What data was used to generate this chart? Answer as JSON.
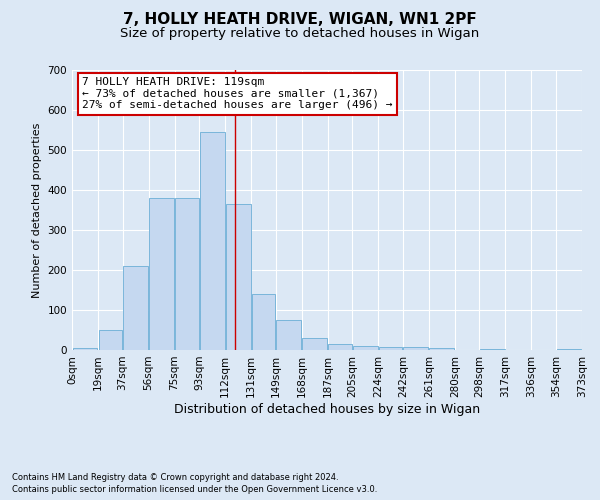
{
  "title1": "7, HOLLY HEATH DRIVE, WIGAN, WN1 2PF",
  "title2": "Size of property relative to detached houses in Wigan",
  "xlabel": "Distribution of detached houses by size in Wigan",
  "ylabel": "Number of detached properties",
  "footnote1": "Contains HM Land Registry data © Crown copyright and database right 2024.",
  "footnote2": "Contains public sector information licensed under the Open Government Licence v3.0.",
  "bin_edges": [
    0,
    19,
    37,
    56,
    75,
    93,
    112,
    131,
    149,
    168,
    187,
    205,
    224,
    242,
    261,
    280,
    298,
    317,
    336,
    354,
    373
  ],
  "bin_labels": [
    "0sqm",
    "19sqm",
    "37sqm",
    "56sqm",
    "75sqm",
    "93sqm",
    "112sqm",
    "131sqm",
    "149sqm",
    "168sqm",
    "187sqm",
    "205sqm",
    "224sqm",
    "242sqm",
    "261sqm",
    "280sqm",
    "298sqm",
    "317sqm",
    "336sqm",
    "354sqm",
    "373sqm"
  ],
  "bar_heights": [
    5,
    50,
    210,
    380,
    380,
    545,
    365,
    140,
    75,
    30,
    15,
    10,
    7,
    7,
    5,
    0,
    3,
    0,
    0,
    3
  ],
  "bar_color": "#c5d8f0",
  "bar_edgecolor": "#6baed6",
  "vline_x": 119,
  "vline_color": "#cc0000",
  "ylim": [
    0,
    700
  ],
  "yticks": [
    0,
    100,
    200,
    300,
    400,
    500,
    600,
    700
  ],
  "annotation_text": "7 HOLLY HEATH DRIVE: 119sqm\n← 73% of detached houses are smaller (1,367)\n27% of semi-detached houses are larger (496) →",
  "annotation_box_color": "#ffffff",
  "annotation_box_edgecolor": "#cc0000",
  "background_color": "#dce8f5",
  "grid_color": "#ffffff",
  "title1_fontsize": 11,
  "title2_fontsize": 9.5,
  "xlabel_fontsize": 9,
  "ylabel_fontsize": 8,
  "tick_fontsize": 7.5,
  "annotation_fontsize": 8,
  "footnote_fontsize": 6
}
